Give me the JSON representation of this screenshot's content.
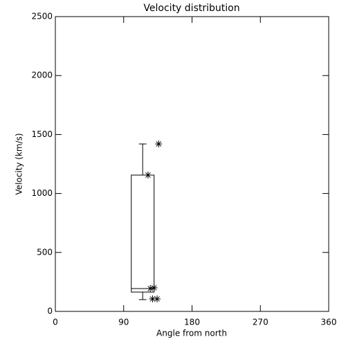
{
  "chart_data": {
    "type": "box",
    "title": "Velocity distribution",
    "x_label": "Angle from north",
    "y_label": "Velocity (km/s)",
    "xlim": [
      0,
      360
    ],
    "xticks": [
      0,
      90,
      180,
      270,
      360
    ],
    "ylim": [
      0,
      2500
    ],
    "yticks": [
      0,
      500,
      1000,
      1500,
      2000,
      2500
    ],
    "box": {
      "x": [
        100,
        130
      ],
      "min": 100,
      "q1": 164,
      "median": 194,
      "q3": 1156,
      "max": 1420
    },
    "points": {
      "x": [
        136,
        122,
        125,
        130,
        128,
        134
      ],
      "y": [
        1420,
        1156,
        194,
        200,
        106,
        106
      ]
    },
    "color": "#000000"
  }
}
